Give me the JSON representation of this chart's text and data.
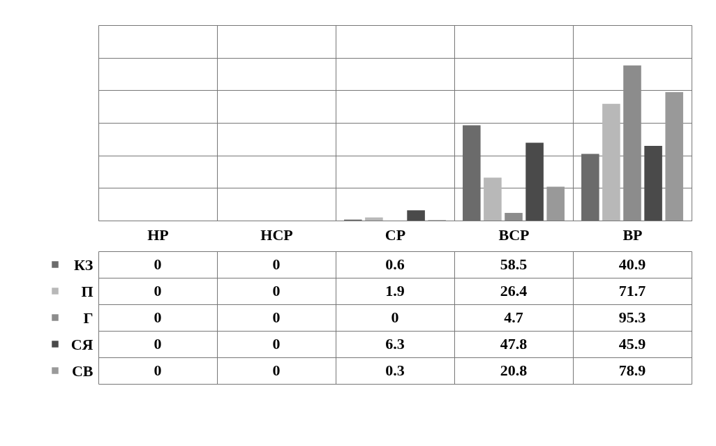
{
  "chart_data": {
    "type": "bar",
    "categories": [
      "НР",
      "НСР",
      "СР",
      "ВСР",
      "ВР"
    ],
    "series": [
      {
        "name": "КЗ",
        "color": "#6b6b6b",
        "values": [
          0,
          0,
          0.6,
          58.5,
          40.9
        ]
      },
      {
        "name": "П",
        "color": "#b8b8b8",
        "values": [
          0,
          0,
          1.9,
          26.4,
          71.7
        ]
      },
      {
        "name": "Г",
        "color": "#8c8c8c",
        "values": [
          0,
          0,
          0,
          4.7,
          95.3
        ]
      },
      {
        "name": "СЯ",
        "color": "#4a4a4a",
        "values": [
          0,
          0,
          6.3,
          47.8,
          45.9
        ]
      },
      {
        "name": "СВ",
        "color": "#999999",
        "values": [
          0,
          0,
          0.3,
          20.8,
          78.9
        ]
      }
    ],
    "ylim": [
      0,
      120
    ],
    "yticks": [
      {
        "value": 0,
        "label": null
      },
      {
        "value": 20,
        "label": null
      },
      {
        "value": 40,
        "label": null
      },
      {
        "value": 60,
        "label": null
      },
      {
        "value": 80,
        "label": null
      },
      {
        "value": 100,
        "label": null
      },
      {
        "value": 120,
        "label": null
      }
    ],
    "grid": true,
    "data_labels": true,
    "legend": "bottom left"
  }
}
